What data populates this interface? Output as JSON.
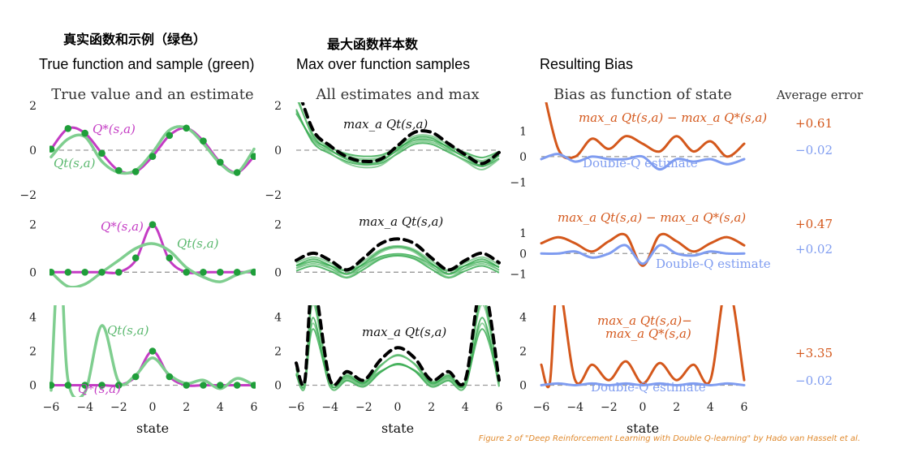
{
  "headers": {
    "col1_cn": "真实函数和示例（绿色）",
    "col1_en": "True function and sample (green)",
    "col2_cn": "最大函数样本数",
    "col2_en": "Max over function samples",
    "col3_en": "Resulting Bias"
  },
  "panel_titles": {
    "col1": "True value and an estimate",
    "col2": "All estimates and max",
    "col3": "Bias as function of state",
    "col4": "Average error"
  },
  "xlabel": "state",
  "caption": "Figure 2 of \"Deep Reinforcement Learning with Double Q-learning\" by Hado van Hasselt et al.",
  "colors": {
    "true_fn": "#c43cc4",
    "estimate": "#7fce8f",
    "sample_dots": "#1f9e3a",
    "max_line": "#000000",
    "bias_orange": "#d4581c",
    "double_q_blue": "#7f9cf0",
    "zero_line": "#999999"
  },
  "rows": [
    {
      "name": "row1",
      "labels": {
        "true_fn": "Q*(s,a)",
        "estimate": "Qt(s,a)",
        "max": "max_a Qt(s,a)",
        "bias": "max_a Qt(s,a) − max_a Q*(s,a)",
        "double_q": "Double-Q estimate"
      },
      "errors": {
        "max_bias": "+0.61",
        "double_q": "−0.02"
      }
    },
    {
      "name": "row2",
      "labels": {
        "true_fn": "Q*(s,a)",
        "estimate": "Qt(s,a)",
        "max": "max_a Qt(s,a)",
        "bias": "max_a Qt(s,a) − max_a Q*(s,a)",
        "double_q": "Double-Q estimate"
      },
      "errors": {
        "max_bias": "+0.47",
        "double_q": "+0.02"
      }
    },
    {
      "name": "row3",
      "labels": {
        "true_fn": "Q*(s,a)",
        "estimate": "Qt(s,a)",
        "max": "max_a Qt(s,a)",
        "bias_line1": "max_a Qt(s,a)−",
        "bias_line2": "max_a Q*(s,a)",
        "double_q": "Double-Q estimate"
      },
      "errors": {
        "max_bias": "+3.35",
        "double_q": "−0.02"
      }
    }
  ],
  "chart_data": [
    {
      "type": "line",
      "panel": "r1c1",
      "xlim": [
        -6,
        6
      ],
      "ylim": [
        -2,
        2
      ],
      "yticks": [
        -2,
        0,
        2
      ],
      "series": [
        {
          "name": "Q*(s,a)",
          "x": [
            -6,
            -5,
            -4,
            -3,
            -2,
            -1,
            0,
            1,
            2,
            3,
            4,
            5,
            6
          ],
          "y": [
            0.05,
            0.97,
            0.76,
            -0.14,
            -0.91,
            -0.96,
            -0.28,
            0.66,
            0.99,
            0.41,
            -0.54,
            -1.0,
            -0.28
          ]
        },
        {
          "name": "Qt(s,a)",
          "x": [
            -6,
            -5,
            -4,
            -3,
            -2,
            -1,
            0,
            1,
            2,
            3,
            4,
            5,
            6
          ],
          "y": [
            -0.3,
            0.5,
            0.6,
            -0.5,
            -1.0,
            -0.9,
            -0.1,
            0.9,
            1.0,
            0.3,
            -0.6,
            -1.0,
            0.05
          ]
        }
      ],
      "samples": {
        "x": [
          -6,
          -5,
          -4,
          -3,
          -2,
          -1,
          0,
          1,
          2,
          3,
          4,
          5,
          6
        ],
        "y": [
          0.05,
          0.97,
          0.76,
          -0.14,
          -0.91,
          -0.96,
          -0.28,
          0.66,
          0.99,
          0.41,
          -0.54,
          -1.0,
          -0.28
        ]
      }
    },
    {
      "type": "line",
      "panel": "r1c2",
      "xlim": [
        -6,
        6
      ],
      "ylim": [
        -2,
        2
      ],
      "yticks": [
        -2,
        0,
        2
      ],
      "series": [
        {
          "name": "max_a Qt(s,a)",
          "x": [
            -6,
            -5,
            -4,
            -3,
            -2,
            -1,
            0,
            1,
            2,
            3,
            4,
            5,
            6
          ],
          "y": [
            3.0,
            0.9,
            0.2,
            -0.3,
            -0.5,
            -0.4,
            0.2,
            0.8,
            0.8,
            0.3,
            -0.2,
            -0.6,
            -0.1
          ]
        }
      ]
    },
    {
      "type": "line",
      "panel": "r1c3",
      "xlim": [
        -6,
        6
      ],
      "ylim": [
        -1.5,
        2
      ],
      "yticks": [
        -1,
        0,
        1
      ],
      "series": [
        {
          "name": "max_a Qt(s,a) − max_a Q*(s,a)",
          "x": [
            -6,
            -5,
            -4,
            -3,
            -2,
            -1,
            0,
            1,
            2,
            3,
            4,
            5,
            6
          ],
          "y": [
            3.0,
            0.3,
            0.0,
            0.7,
            0.3,
            0.8,
            0.5,
            0.2,
            0.8,
            0.2,
            0.6,
            0.0,
            0.5
          ]
        },
        {
          "name": "Double-Q estimate",
          "x": [
            -6,
            -5,
            -4,
            -3,
            -2,
            -1,
            0,
            1,
            2,
            3,
            4,
            5,
            6
          ],
          "y": [
            -0.1,
            0.1,
            -0.2,
            0.0,
            -0.1,
            -0.1,
            0.0,
            -0.5,
            -0.1,
            -0.2,
            -0.1,
            -0.3,
            -0.1
          ]
        }
      ]
    },
    {
      "type": "line",
      "panel": "r2c1",
      "xlim": [
        -6,
        6
      ],
      "ylim": [
        -0.5,
        2.5
      ],
      "yticks": [
        0,
        2
      ],
      "series": [
        {
          "name": "Q*(s,a)",
          "x": [
            -6,
            -5,
            -4,
            -3,
            -2,
            -1,
            0,
            1,
            2,
            3,
            4,
            5,
            6
          ],
          "y": [
            0,
            0,
            0,
            0,
            0,
            0.5,
            2.0,
            0.5,
            0,
            0,
            0,
            0,
            0
          ]
        },
        {
          "name": "Qt(s,a)",
          "x": [
            -6,
            -5,
            -4,
            -3,
            -2,
            -1,
            0,
            1,
            2,
            3,
            4,
            5,
            6
          ],
          "y": [
            0,
            -0.6,
            -0.5,
            0,
            0.5,
            1.0,
            1.2,
            0.9,
            0.2,
            -0.2,
            -0.4,
            -0.1,
            0.1
          ]
        }
      ],
      "samples": {
        "x": [
          -6,
          -5,
          -4,
          -3,
          -2,
          -1,
          0,
          1,
          2,
          3,
          4,
          5,
          6
        ],
        "y": [
          0,
          0,
          0,
          0,
          0,
          0.6,
          2.0,
          0.6,
          0,
          0,
          0,
          0,
          0
        ]
      }
    },
    {
      "type": "line",
      "panel": "r2c2",
      "xlim": [
        -6,
        6
      ],
      "ylim": [
        -0.5,
        2.5
      ],
      "yticks": [
        0,
        2
      ],
      "series": [
        {
          "name": "max_a Qt(s,a)",
          "x": [
            -6,
            -5,
            -4,
            -3,
            -2,
            -1,
            0,
            1,
            2,
            3,
            4,
            5,
            6
          ],
          "y": [
            0.5,
            0.8,
            0.5,
            0.1,
            0.6,
            1.2,
            1.4,
            1.2,
            0.6,
            0.1,
            0.5,
            0.8,
            0.4
          ]
        }
      ]
    },
    {
      "type": "line",
      "panel": "r2c3",
      "xlim": [
        -6,
        6
      ],
      "ylim": [
        -1.5,
        2
      ],
      "yticks": [
        -1,
        0,
        1
      ],
      "series": [
        {
          "name": "max_a Qt(s,a) − max_a Q*(s,a)",
          "x": [
            -6,
            -5,
            -4,
            -3,
            -2,
            -1,
            0,
            1,
            2,
            3,
            4,
            5,
            6
          ],
          "y": [
            0.5,
            0.8,
            0.5,
            0.1,
            0.6,
            0.9,
            -0.6,
            0.9,
            0.6,
            0.1,
            0.5,
            0.8,
            0.4
          ]
        },
        {
          "name": "Double-Q estimate",
          "x": [
            -6,
            -5,
            -4,
            -3,
            -2,
            -1,
            0,
            1,
            2,
            3,
            4,
            5,
            6
          ],
          "y": [
            0,
            0,
            0.1,
            -0.2,
            0,
            0.4,
            -0.5,
            0.4,
            0,
            -0.1,
            0.1,
            0,
            0
          ]
        }
      ]
    },
    {
      "type": "line",
      "panel": "r3c1",
      "xlim": [
        -6,
        6
      ],
      "ylim": [
        -0.5,
        4.5
      ],
      "yticks": [
        0,
        2,
        4
      ],
      "series": [
        {
          "name": "Q*(s,a)",
          "x": [
            -6,
            -5,
            -4,
            -3,
            -2,
            -1,
            0,
            1,
            2,
            3,
            4,
            5,
            6
          ],
          "y": [
            0,
            0,
            0,
            0,
            0,
            0.5,
            2.0,
            0.5,
            0,
            0,
            0,
            0,
            0
          ]
        },
        {
          "name": "Qt(s,a)",
          "x": [
            -6,
            -5.5,
            -5,
            -4,
            -3,
            -2,
            -1,
            0,
            1,
            2,
            3,
            4,
            5,
            6
          ],
          "y": [
            -0.3,
            8,
            0.3,
            -0.4,
            3.5,
            0.2,
            0.6,
            1.6,
            0.6,
            0.1,
            0.3,
            -0.2,
            0.4,
            0
          ]
        }
      ],
      "samples": {
        "x": [
          -6,
          -5,
          -4,
          -3,
          -2,
          -1,
          0,
          1,
          2,
          3,
          4,
          5,
          6
        ],
        "y": [
          0,
          0,
          0,
          0,
          0,
          0.5,
          2.0,
          0.5,
          0,
          0,
          0,
          0,
          0
        ]
      }
    },
    {
      "type": "line",
      "panel": "r3c2",
      "xlim": [
        -6,
        6
      ],
      "ylim": [
        -0.5,
        4.5
      ],
      "yticks": [
        0,
        2,
        4
      ],
      "series": [
        {
          "name": "max_a Qt(s,a)",
          "x": [
            -6,
            -5.5,
            -5,
            -4,
            -3,
            -2,
            -1,
            0,
            1,
            2,
            3,
            4,
            5,
            6
          ],
          "y": [
            1.3,
            0.2,
            6,
            0.3,
            0.8,
            0.3,
            1.5,
            2.2,
            1.6,
            0.3,
            0.8,
            0.3,
            6,
            0.3
          ]
        }
      ]
    },
    {
      "type": "line",
      "panel": "r3c3",
      "xlim": [
        -6,
        6
      ],
      "ylim": [
        -0.5,
        4.5
      ],
      "yticks": [
        0,
        2,
        4
      ],
      "series": [
        {
          "name": "max_a Qt(s,a) − max_a Q*(s,a)",
          "x": [
            -6,
            -5.5,
            -5,
            -4,
            -3,
            -2,
            -1,
            0,
            1,
            2,
            3,
            4,
            5,
            6
          ],
          "y": [
            1.2,
            0.1,
            6,
            0.3,
            1.2,
            0.3,
            1.4,
            0.1,
            1.3,
            0.3,
            1.2,
            0.3,
            6,
            0.3
          ]
        },
        {
          "name": "Double-Q estimate",
          "x": [
            -6,
            -5,
            -4,
            -3,
            -2,
            -1,
            0,
            1,
            2,
            3,
            4,
            5,
            6
          ],
          "y": [
            0,
            0.1,
            0,
            0.1,
            0,
            0.1,
            0,
            0.1,
            0,
            0.1,
            0,
            0.1,
            0
          ]
        }
      ]
    }
  ]
}
